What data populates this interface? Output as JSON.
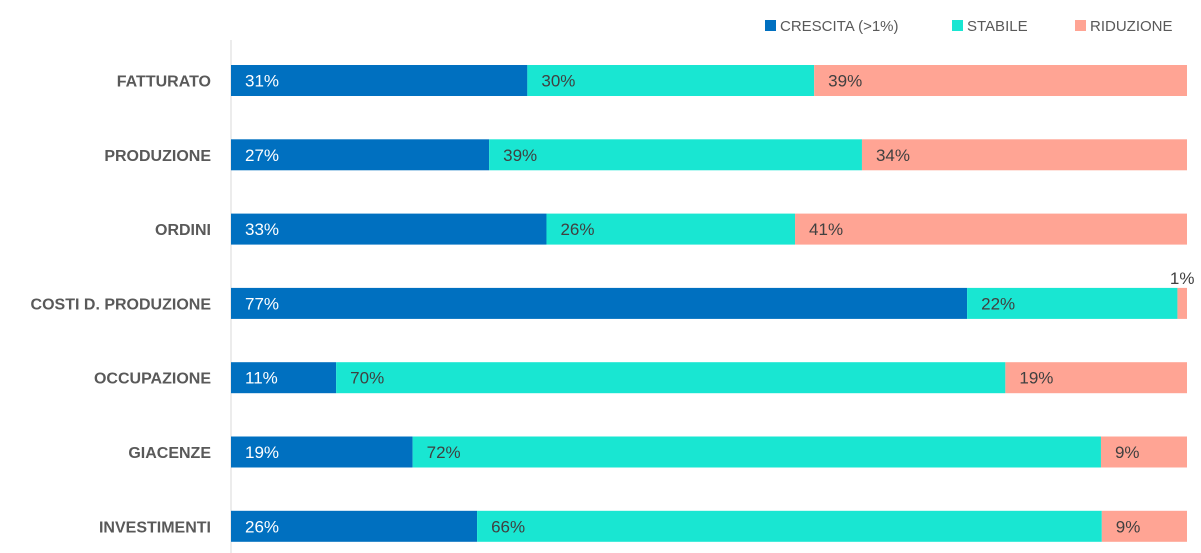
{
  "chart_data": {
    "type": "bar",
    "orientation": "horizontal",
    "stacked": "100%",
    "categories": [
      "FATTURATO",
      "PRODUZIONE",
      "ORDINI",
      "COSTI D. PRODUZIONE",
      "OCCUPAZIONE",
      "GIACENZE",
      "INVESTIMENTI"
    ],
    "series": [
      {
        "name": "CRESCITA (>1%)",
        "color": "#0070c0",
        "label_color": "#ffffff",
        "values": [
          31,
          27,
          33,
          77,
          11,
          19,
          26
        ]
      },
      {
        "name": "STABILE",
        "color": "#19e6d2",
        "label_color": "#404040",
        "values": [
          30,
          39,
          26,
          22,
          70,
          72,
          66
        ]
      },
      {
        "name": "RIDUZIONE",
        "color": "#ffa494",
        "label_color": "#404040",
        "values": [
          39,
          34,
          41,
          1,
          19,
          9,
          9
        ]
      }
    ],
    "value_suffix": "%",
    "xlim": [
      0,
      100
    ],
    "grid": false,
    "legend": "top-right",
    "title": "",
    "xlabel": "",
    "ylabel": ""
  }
}
